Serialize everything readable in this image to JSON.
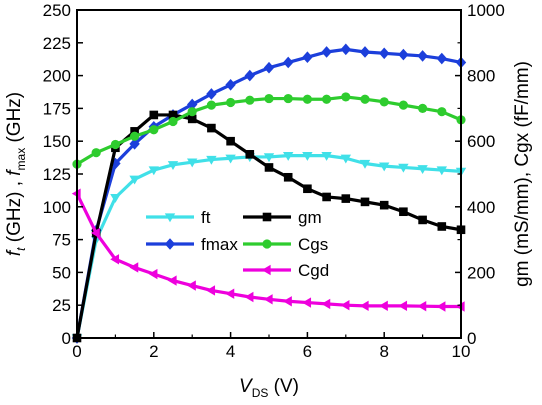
{
  "chart_data": {
    "type": "line",
    "x_axis": {
      "label_main": "V",
      "label_sub": "DS",
      "label_unit": " (V)",
      "range": [
        0,
        10
      ],
      "ticks": [
        "0",
        "2",
        "4",
        "6",
        "8",
        "10"
      ]
    },
    "y_left_axis": {
      "label_parts": [
        {
          "t": "f",
          "style": "italic",
          "sub": false
        },
        {
          "t": "t",
          "style": "italic",
          "sub": true
        },
        {
          "t": " (GHz) , ",
          "style": "normal",
          "sub": false
        },
        {
          "t": "f",
          "style": "italic",
          "sub": false
        },
        {
          "t": "max",
          "style": "normal",
          "sub": true
        },
        {
          "t": " (GHz)",
          "style": "normal",
          "sub": false
        }
      ],
      "range": [
        0,
        250
      ],
      "ticks": [
        "0",
        "25",
        "50",
        "75",
        "100",
        "125",
        "150",
        "175",
        "200",
        "225",
        "250"
      ]
    },
    "y_right_axis": {
      "label": "gm (mS/mm), Cgx (fF/mm)",
      "range": [
        0,
        1000
      ],
      "ticks": [
        "0",
        "200",
        "400",
        "600",
        "800",
        "1000"
      ]
    },
    "x": [
      0,
      0.5,
      1,
      1.5,
      2,
      2.5,
      3,
      3.5,
      4,
      4.5,
      5,
      5.5,
      6,
      6.5,
      7,
      7.5,
      8,
      8.5,
      9,
      9.5,
      10
    ],
    "series": [
      {
        "name": "ft",
        "axis": "left",
        "color": "#40E0E8",
        "marker": "triangle-down",
        "values": [
          0,
          75,
          107,
          121,
          128,
          132,
          134,
          136,
          137,
          138,
          138,
          139,
          139,
          139,
          137,
          133,
          131,
          130,
          129,
          128,
          127
        ]
      },
      {
        "name": "fmax",
        "axis": "left",
        "color": "#1C3FDB",
        "marker": "diamond",
        "values": [
          0,
          82,
          133,
          148,
          161,
          170,
          178,
          186,
          193,
          200,
          206,
          210,
          214,
          218,
          220,
          218,
          217,
          216,
          215,
          213,
          210
        ]
      },
      {
        "name": "gm",
        "axis": "right",
        "color": "#000000",
        "marker": "square",
        "values": [
          0,
          320,
          580,
          630,
          680,
          680,
          668,
          640,
          600,
          560,
          520,
          490,
          455,
          430,
          425,
          415,
          405,
          385,
          360,
          340,
          330
        ]
      },
      {
        "name": "Cgs",
        "axis": "right",
        "color": "#2ECC2E",
        "marker": "circle",
        "values": [
          530,
          565,
          590,
          615,
          635,
          660,
          690,
          710,
          718,
          725,
          730,
          730,
          728,
          728,
          735,
          728,
          720,
          710,
          700,
          690,
          665
        ]
      },
      {
        "name": "Cgd",
        "axis": "right",
        "color": "#EE00DD",
        "marker": "triangle-left",
        "values": [
          440,
          320,
          240,
          215,
          195,
          175,
          160,
          145,
          135,
          125,
          118,
          112,
          108,
          104,
          100,
          98,
          98,
          98,
          97,
          96,
          96
        ]
      }
    ],
    "legend": {
      "placement": "inside bottom-left",
      "columns": [
        [
          "ft",
          "fmax"
        ],
        [
          "gm",
          "Cgs",
          "Cgd"
        ]
      ]
    },
    "grid": false
  }
}
